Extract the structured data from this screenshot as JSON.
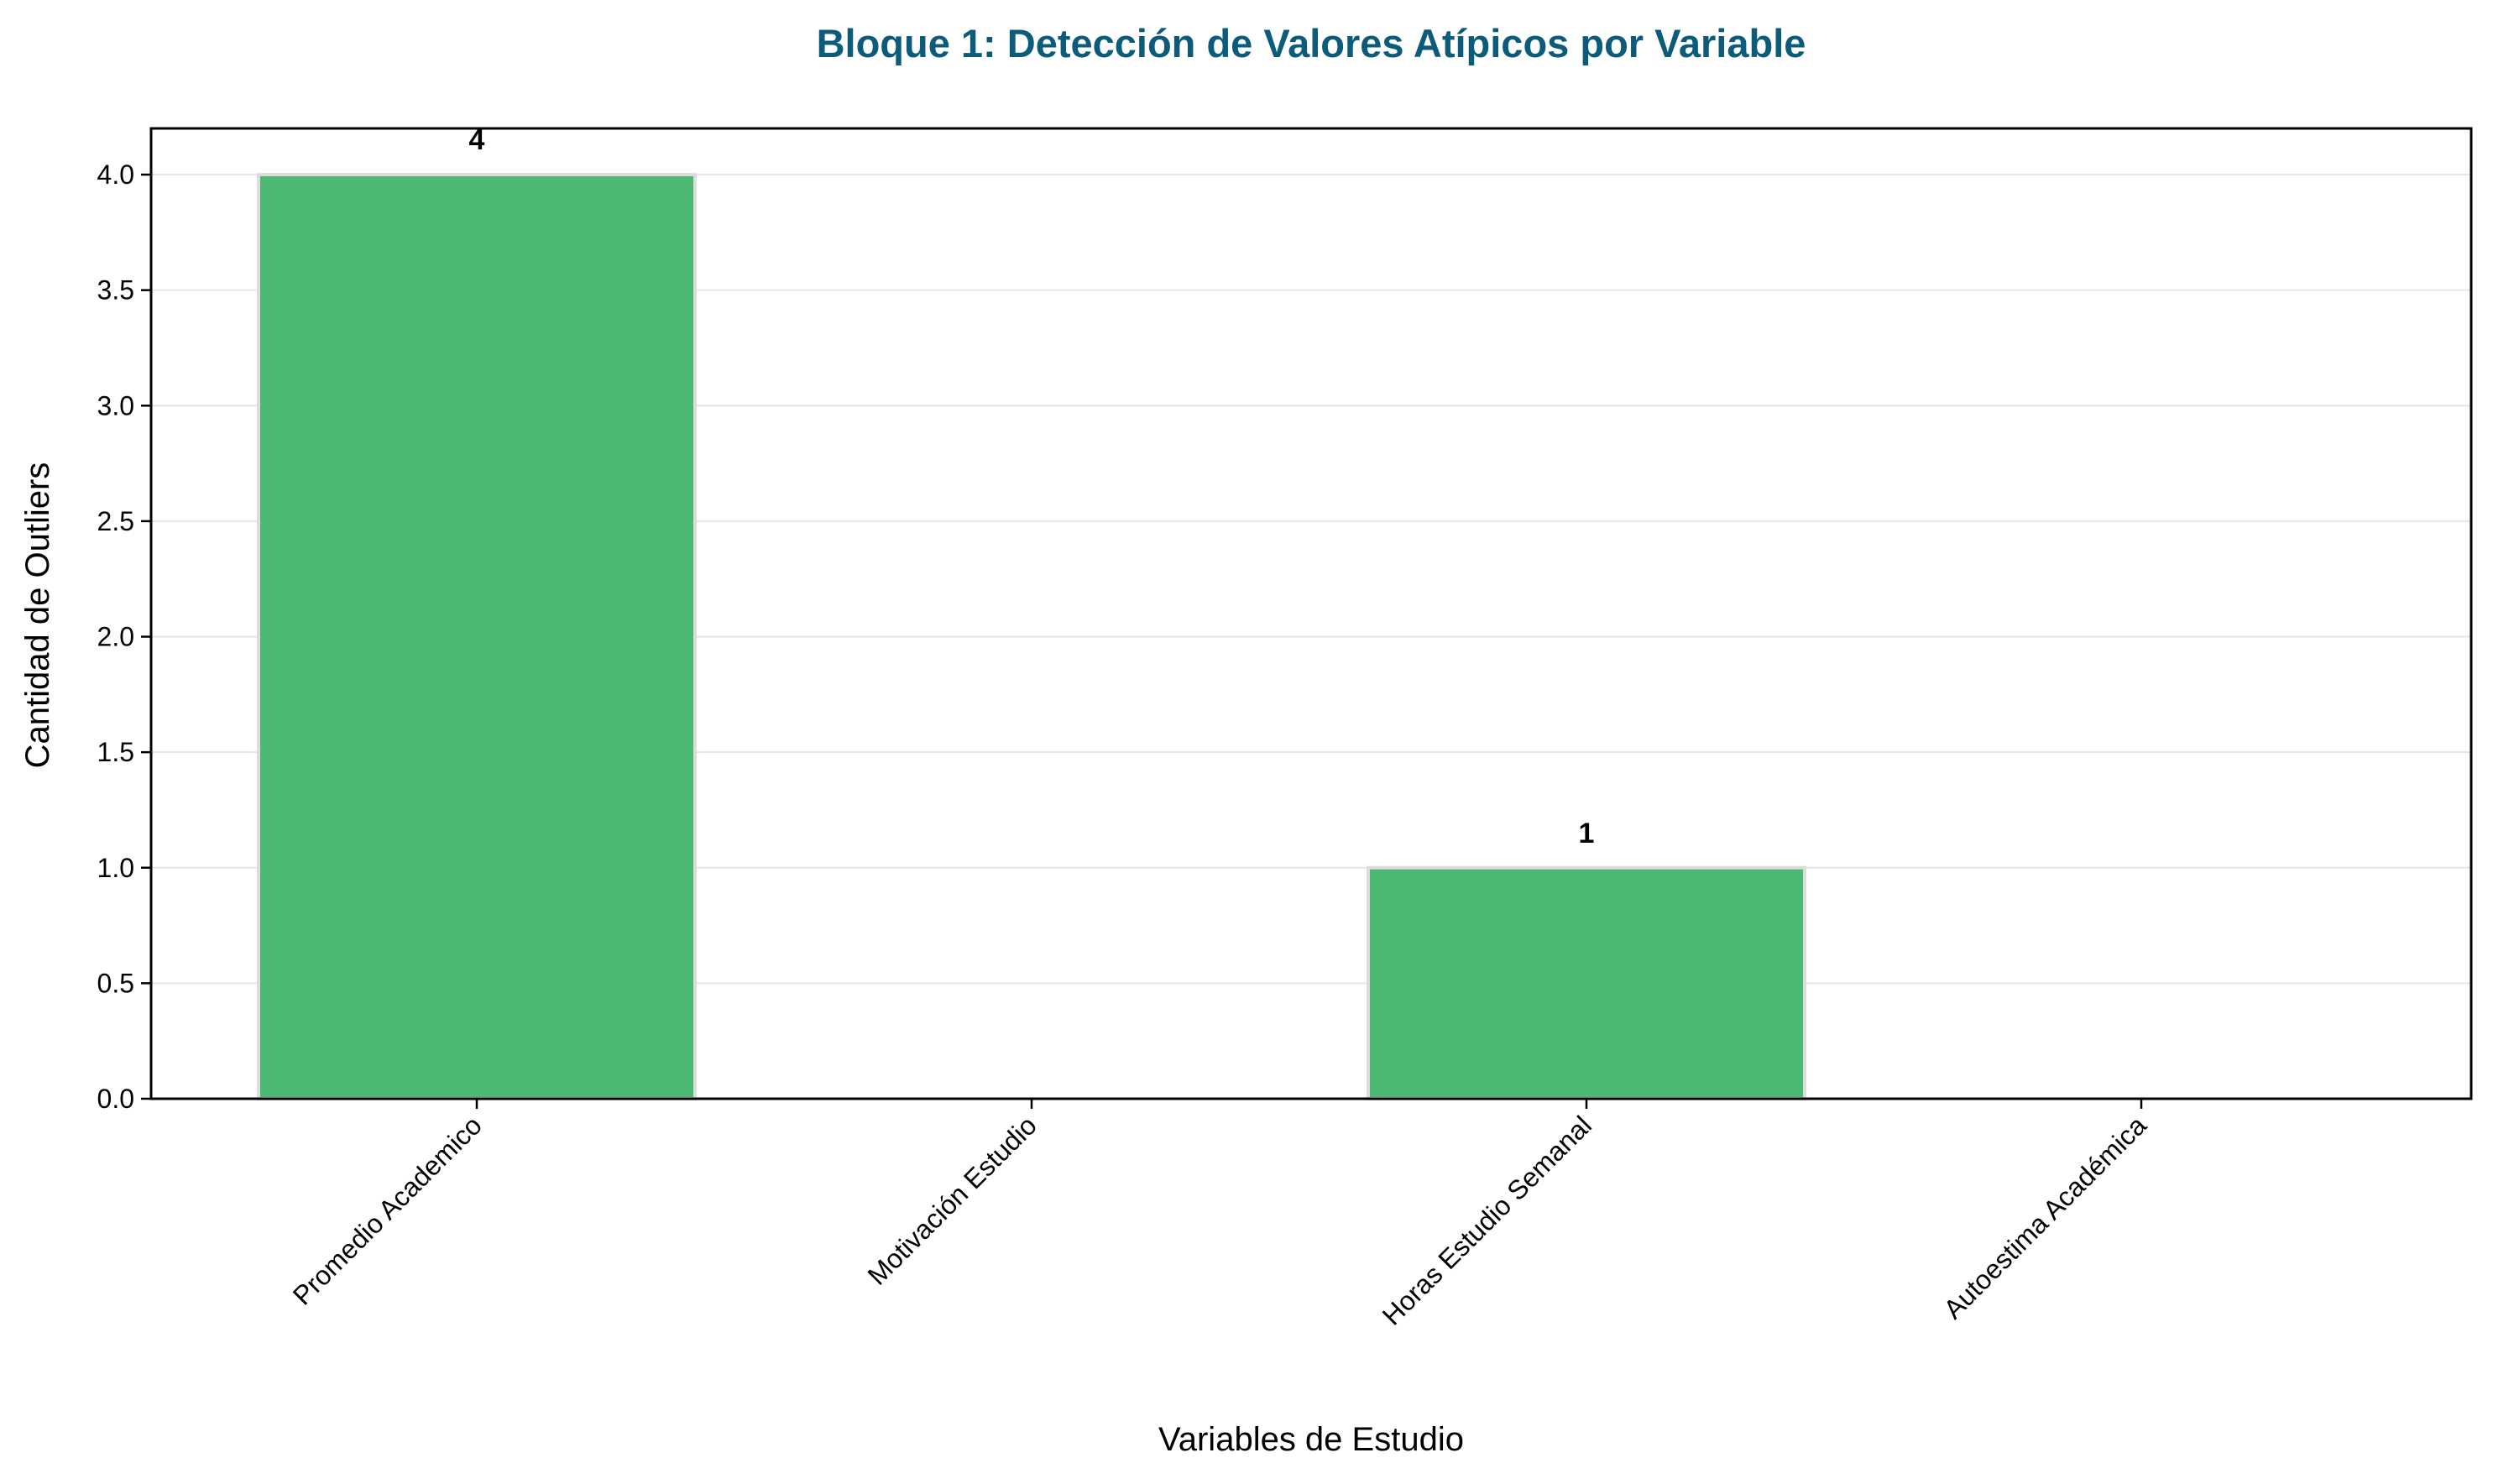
{
  "chart_data": {
    "type": "bar",
    "title": "Bloque 1: Detección de Valores Atípicos por Variable",
    "xlabel": "Variables de Estudio",
    "ylabel": "Cantidad de Outliers",
    "categories": [
      "Promedio Academico",
      "Motivación Estudio",
      "Horas Estudio Semanal",
      "Autoestima Académica"
    ],
    "values": [
      4,
      0,
      1,
      0
    ],
    "data_labels": [
      "4",
      "",
      "1",
      ""
    ],
    "ylim": [
      0,
      4.2
    ],
    "yticks": [
      0.0,
      0.5,
      1.0,
      1.5,
      2.0,
      2.5,
      3.0,
      3.5,
      4.0
    ],
    "ytick_labels": [
      "0.0",
      "0.5",
      "1.0",
      "1.5",
      "2.0",
      "2.5",
      "3.0",
      "3.5",
      "4.0"
    ],
    "grid": "horizontal",
    "legend": "none",
    "colors": {
      "bar": "#4db774",
      "bar_edge": "#dcdcdc",
      "title": "#0c5b7a",
      "grid": "#e6e6e6",
      "axis": "#000000"
    }
  }
}
